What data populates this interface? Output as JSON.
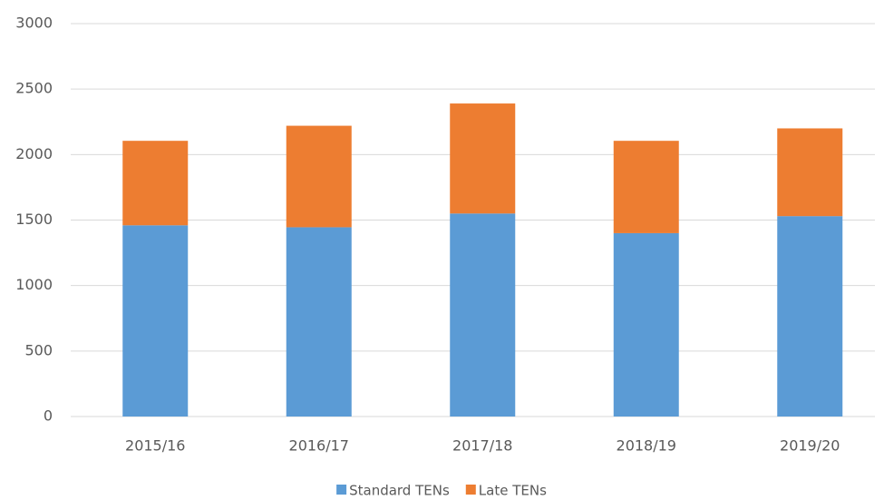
{
  "chart_data": {
    "type": "stacked_bar",
    "categories": [
      "2015/16",
      "2016/17",
      "2017/18",
      "2018/19",
      "2019/20"
    ],
    "series": [
      {
        "name": "Standard TENs",
        "color": "#5b9bd5",
        "values": [
          1460,
          1445,
          1550,
          1400,
          1530
        ]
      },
      {
        "name": "Late TENs",
        "color": "#ed7d31",
        "values": [
          645,
          775,
          840,
          705,
          670
        ]
      }
    ],
    "ylim": [
      0,
      3000
    ],
    "yticks": [
      0,
      500,
      1000,
      1500,
      2000,
      2500,
      3000
    ],
    "grid": true,
    "legend": "bottom"
  }
}
